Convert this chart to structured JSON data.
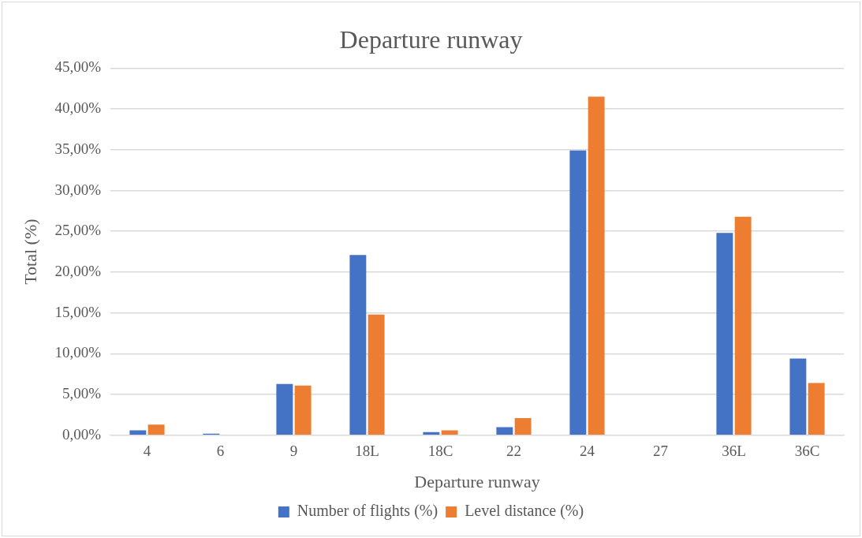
{
  "chart_data": {
    "type": "bar",
    "title": "Departure runway",
    "xlabel": "Departure runway",
    "ylabel": "Total (%)",
    "categories": [
      "4",
      "6",
      "9",
      "18L",
      "18C",
      "22",
      "24",
      "27",
      "36L",
      "36C"
    ],
    "series": [
      {
        "name": "Number of flights (%)",
        "color": "#4472c4",
        "values": [
          0.6,
          0.2,
          6.3,
          22.1,
          0.4,
          1.0,
          34.9,
          0,
          24.8,
          9.4
        ]
      },
      {
        "name": "Level distance (%)",
        "color": "#ed7d31",
        "values": [
          1.3,
          0,
          6.1,
          14.8,
          0.6,
          2.1,
          41.5,
          0,
          26.8,
          6.4
        ]
      }
    ],
    "ylim": [
      0,
      45
    ],
    "yticks": [
      {
        "value": 0,
        "label": "0,00%"
      },
      {
        "value": 5,
        "label": "5,00%"
      },
      {
        "value": 10,
        "label": "10,00%"
      },
      {
        "value": 15,
        "label": "15,00%"
      },
      {
        "value": 20,
        "label": "20,00%"
      },
      {
        "value": 25,
        "label": "25,00%"
      },
      {
        "value": 30,
        "label": "30,00%"
      },
      {
        "value": 35,
        "label": "35,00%"
      },
      {
        "value": 40,
        "label": "40,00%"
      },
      {
        "value": 45,
        "label": "45,00%"
      }
    ],
    "grid": "y",
    "legend": "bottom"
  }
}
